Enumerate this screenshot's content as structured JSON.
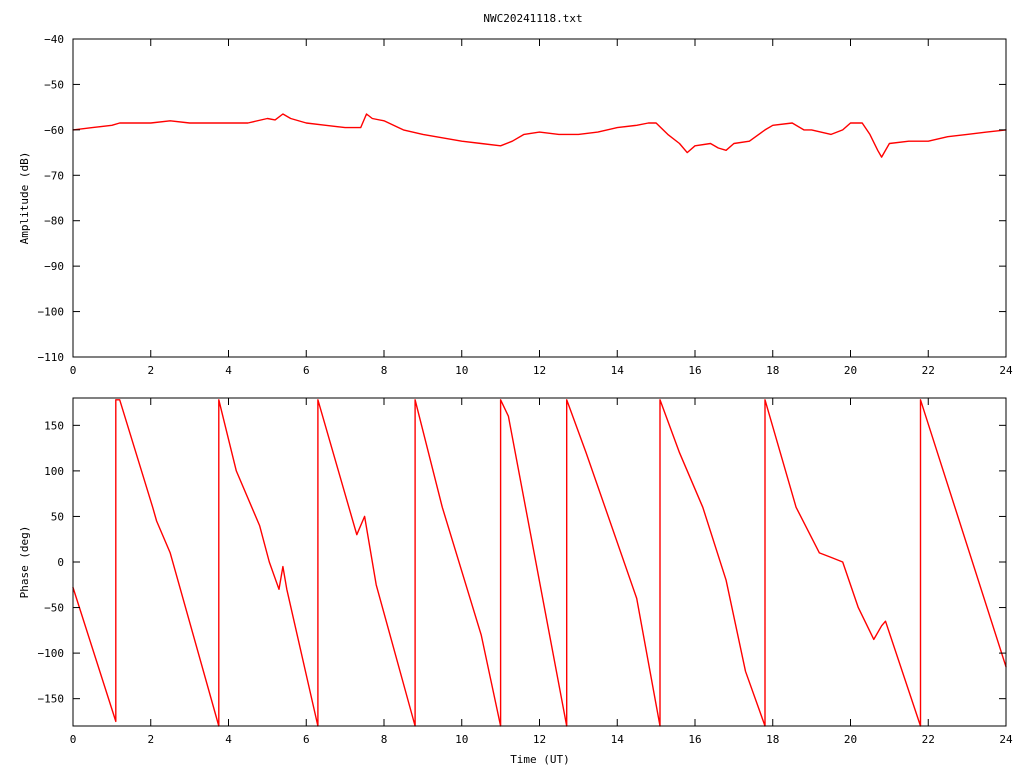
{
  "chart_data": {
    "type": "line",
    "title": "NWC20241118.txt",
    "panels": [
      {
        "name": "amplitude",
        "xlabel": "",
        "ylabel": "Amplitude (dB)",
        "xlim": [
          0,
          24
        ],
        "ylim": [
          -110,
          -40
        ],
        "xticks": [
          0,
          2,
          4,
          6,
          8,
          10,
          12,
          14,
          16,
          18,
          20,
          22,
          24
        ],
        "yticks": [
          -110,
          -100,
          -90,
          -80,
          -70,
          -60,
          -50,
          -40
        ],
        "grid": false,
        "series": [
          {
            "color": "#ff0000",
            "x": [
              0,
              0.5,
              1.0,
              1.2,
              2.0,
              2.5,
              3.0,
              4.0,
              4.5,
              5.0,
              5.2,
              5.4,
              5.6,
              6.0,
              6.5,
              7.0,
              7.4,
              7.55,
              7.7,
              8.0,
              8.5,
              9.0,
              10.0,
              10.5,
              11.0,
              11.3,
              11.6,
              12.0,
              12.5,
              13.0,
              13.5,
              14.0,
              14.5,
              14.8,
              15.0,
              15.3,
              15.6,
              15.8,
              16.0,
              16.4,
              16.6,
              16.8,
              17.0,
              17.4,
              17.8,
              18.0,
              18.5,
              18.8,
              19.0,
              19.5,
              19.8,
              20.0,
              20.3,
              20.5,
              20.7,
              20.8,
              21.0,
              21.5,
              22.0,
              22.5,
              23.0,
              23.5,
              24.0
            ],
            "y": [
              -60,
              -59.5,
              -59,
              -58.5,
              -58.5,
              -58,
              -58.5,
              -58.5,
              -58.5,
              -57.5,
              -57.8,
              -56.5,
              -57.5,
              -58.5,
              -59,
              -59.5,
              -59.5,
              -56.5,
              -57.5,
              -58,
              -60,
              -61,
              -62.5,
              -63,
              -63.5,
              -62.5,
              -61,
              -60.5,
              -61,
              -61,
              -60.5,
              -59.5,
              -59,
              -58.5,
              -58.5,
              -61,
              -63,
              -65,
              -63.5,
              -63,
              -64,
              -64.5,
              -63,
              -62.5,
              -60,
              -59,
              -58.5,
              -60,
              -60,
              -61,
              -60,
              -58.5,
              -58.5,
              -61,
              -64.5,
              -66,
              -63,
              -62.5,
              -62.5,
              -61.5,
              -61,
              -60.5,
              -60
            ]
          }
        ]
      },
      {
        "name": "phase",
        "xlabel": "Time (UT)",
        "ylabel": "Phase (deg)",
        "xlim": [
          0,
          24
        ],
        "ylim": [
          -180,
          180
        ],
        "xticks": [
          0,
          2,
          4,
          6,
          8,
          10,
          12,
          14,
          16,
          18,
          20,
          22,
          24
        ],
        "yticks": [
          -150,
          -100,
          -50,
          0,
          50,
          100,
          150
        ],
        "grid": false,
        "series": [
          {
            "color": "#ff0000",
            "x": [
              0,
              1.1,
              1.1,
              1.2,
              2.05,
              2.15,
              2.5,
              3.75,
              3.75,
              4.2,
              4.8,
              5.05,
              5.3,
              5.4,
              5.5,
              6.3,
              6.3,
              7.3,
              7.5,
              7.8,
              8.8,
              8.8,
              9.5,
              10.5,
              11.0,
              11.0,
              11.2,
              12.7,
              12.7,
              13.2,
              14.5,
              15.1,
              15.1,
              15.6,
              16.2,
              16.8,
              17.3,
              17.8,
              17.8,
              18.6,
              19.2,
              19.5,
              19.8,
              20.2,
              20.6,
              20.8,
              20.9,
              21.8,
              21.8,
              24.0
            ],
            "y": [
              -28,
              -175,
              178,
              178,
              60,
              45,
              10,
              -180,
              178,
              100,
              40,
              0,
              -30,
              -5,
              -30,
              -180,
              178,
              30,
              50,
              -25,
              -180,
              178,
              60,
              -80,
              -180,
              178,
              160,
              -180,
              178,
              120,
              -40,
              -180,
              178,
              120,
              60,
              -20,
              -120,
              -180,
              178,
              60,
              10,
              5,
              0,
              -50,
              -85,
              -70,
              -65,
              -180,
              178,
              -115
            ]
          }
        ]
      }
    ]
  }
}
